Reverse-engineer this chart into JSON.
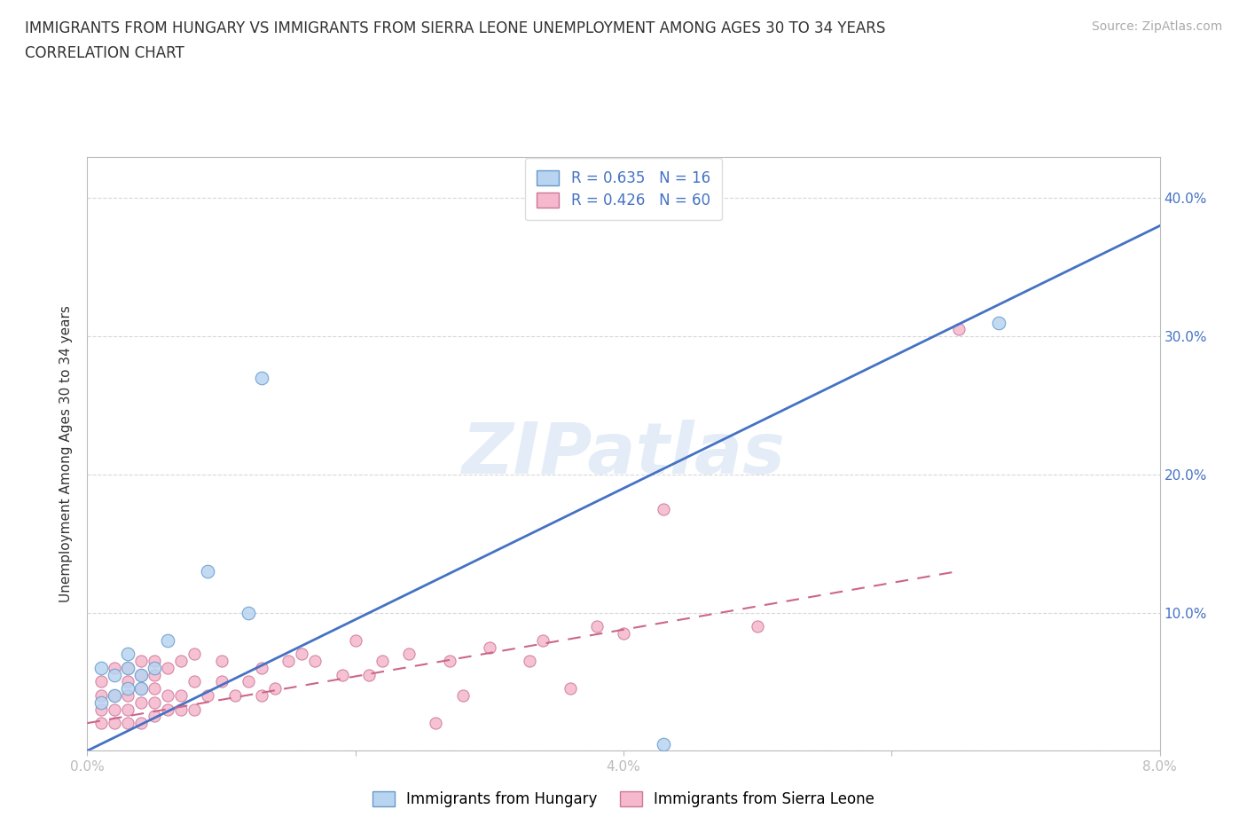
{
  "title_line1": "IMMIGRANTS FROM HUNGARY VS IMMIGRANTS FROM SIERRA LEONE UNEMPLOYMENT AMONG AGES 30 TO 34 YEARS",
  "title_line2": "CORRELATION CHART",
  "source": "Source: ZipAtlas.com",
  "ylabel": "Unemployment Among Ages 30 to 34 years",
  "xlim": [
    0.0,
    0.08
  ],
  "ylim": [
    0.0,
    0.43
  ],
  "xticks": [
    0.0,
    0.02,
    0.04,
    0.06,
    0.08
  ],
  "yticks": [
    0.0,
    0.1,
    0.2,
    0.3,
    0.4
  ],
  "xtick_labels": [
    "0.0%",
    "",
    "4.0%",
    "",
    "8.0%"
  ],
  "ytick_labels_right": [
    "",
    "10.0%",
    "20.0%",
    "30.0%",
    "40.0%"
  ],
  "hungary_color": "#b8d4f0",
  "hungary_edge": "#6699cc",
  "sierra_leone_color": "#f5b8cc",
  "sierra_leone_edge": "#cc7799",
  "hungary_R": 0.635,
  "hungary_N": 16,
  "sierra_leone_R": 0.426,
  "sierra_leone_N": 60,
  "legend_text_color": "#4472c4",
  "watermark": "ZIPatlas",
  "hungary_x": [
    0.001,
    0.001,
    0.002,
    0.002,
    0.003,
    0.003,
    0.003,
    0.004,
    0.004,
    0.005,
    0.006,
    0.009,
    0.012,
    0.013,
    0.043,
    0.068
  ],
  "hungary_y": [
    0.035,
    0.06,
    0.04,
    0.055,
    0.045,
    0.06,
    0.07,
    0.045,
    0.055,
    0.06,
    0.08,
    0.13,
    0.1,
    0.27,
    0.005,
    0.31
  ],
  "sierra_leone_x": [
    0.001,
    0.001,
    0.001,
    0.001,
    0.002,
    0.002,
    0.002,
    0.002,
    0.003,
    0.003,
    0.003,
    0.003,
    0.003,
    0.004,
    0.004,
    0.004,
    0.004,
    0.004,
    0.005,
    0.005,
    0.005,
    0.005,
    0.005,
    0.006,
    0.006,
    0.006,
    0.007,
    0.007,
    0.007,
    0.008,
    0.008,
    0.008,
    0.009,
    0.01,
    0.01,
    0.011,
    0.012,
    0.013,
    0.013,
    0.014,
    0.015,
    0.016,
    0.017,
    0.019,
    0.02,
    0.021,
    0.022,
    0.024,
    0.026,
    0.027,
    0.028,
    0.03,
    0.033,
    0.034,
    0.036,
    0.038,
    0.04,
    0.043,
    0.05,
    0.065
  ],
  "sierra_leone_y": [
    0.02,
    0.03,
    0.04,
    0.05,
    0.02,
    0.03,
    0.04,
    0.06,
    0.02,
    0.03,
    0.04,
    0.05,
    0.06,
    0.02,
    0.035,
    0.045,
    0.055,
    0.065,
    0.025,
    0.035,
    0.045,
    0.055,
    0.065,
    0.03,
    0.04,
    0.06,
    0.03,
    0.04,
    0.065,
    0.03,
    0.05,
    0.07,
    0.04,
    0.05,
    0.065,
    0.04,
    0.05,
    0.04,
    0.06,
    0.045,
    0.065,
    0.07,
    0.065,
    0.055,
    0.08,
    0.055,
    0.065,
    0.07,
    0.02,
    0.065,
    0.04,
    0.075,
    0.065,
    0.08,
    0.045,
    0.09,
    0.085,
    0.175,
    0.09,
    0.305
  ],
  "hungary_line_color": "#4472c4",
  "sierra_leone_line_color": "#cc6688",
  "hungary_line_x0": 0.0,
  "hungary_line_x1": 0.08,
  "hungary_line_y0": 0.0,
  "hungary_line_y1": 0.38,
  "sierra_leone_line_x0": 0.0,
  "sierra_leone_line_x1": 0.065,
  "sierra_leone_line_y0": 0.02,
  "sierra_leone_line_y1": 0.13,
  "background_color": "#ffffff",
  "grid_color": "#d8d8d8",
  "title_color": "#333333",
  "axis_color": "#bbbbbb",
  "watermark_color": "#c5d8ee",
  "watermark_alpha": 0.45
}
